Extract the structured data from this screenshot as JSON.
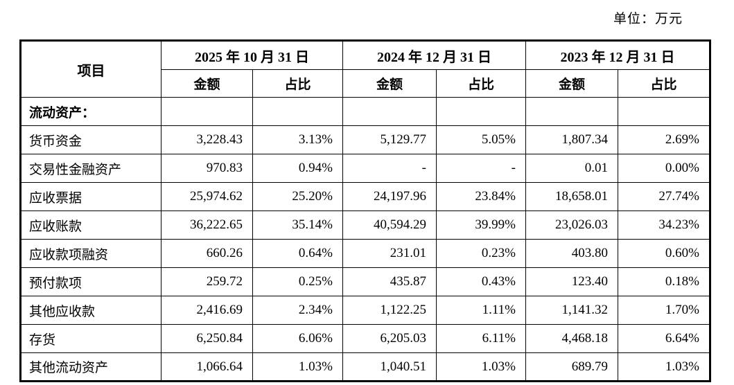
{
  "unit_label": "单位：万元",
  "table": {
    "corner_header": "项目",
    "period_headers": [
      "2025 年 10 月 31 日",
      "2024 年 12 月 31 日",
      "2023 年 12 月 31 日"
    ],
    "sub_headers": {
      "amount": "金额",
      "ratio": "占比"
    },
    "section_row": {
      "label": "流动资产：",
      "cells": [
        "",
        "",
        "",
        "",
        "",
        ""
      ]
    },
    "rows": [
      {
        "label": "货币资金",
        "cells": [
          "3,228.43",
          "3.13%",
          "5,129.77",
          "5.05%",
          "1,807.34",
          "2.69%"
        ]
      },
      {
        "label": "交易性金融资产",
        "cells": [
          "970.83",
          "0.94%",
          "-",
          "-",
          "0.01",
          "0.00%"
        ]
      },
      {
        "label": "应收票据",
        "cells": [
          "25,974.62",
          "25.20%",
          "24,197.96",
          "23.84%",
          "18,658.01",
          "27.74%"
        ]
      },
      {
        "label": "应收账款",
        "cells": [
          "36,222.65",
          "35.14%",
          "40,594.29",
          "39.99%",
          "23,026.03",
          "34.23%"
        ]
      },
      {
        "label": "应收款项融资",
        "cells": [
          "660.26",
          "0.64%",
          "231.01",
          "0.23%",
          "403.80",
          "0.60%"
        ]
      },
      {
        "label": "预付款项",
        "cells": [
          "259.72",
          "0.25%",
          "435.87",
          "0.43%",
          "123.40",
          "0.18%"
        ]
      },
      {
        "label": "其他应收款",
        "cells": [
          "2,416.69",
          "2.34%",
          "1,122.25",
          "1.11%",
          "1,141.32",
          "1.70%"
        ]
      },
      {
        "label": "存货",
        "cells": [
          "6,250.84",
          "6.06%",
          "6,205.03",
          "6.11%",
          "4,468.18",
          "6.64%"
        ]
      },
      {
        "label": "其他流动资产",
        "cells": [
          "1,066.64",
          "1.03%",
          "1,040.51",
          "1.03%",
          "689.79",
          "1.03%"
        ]
      }
    ]
  }
}
